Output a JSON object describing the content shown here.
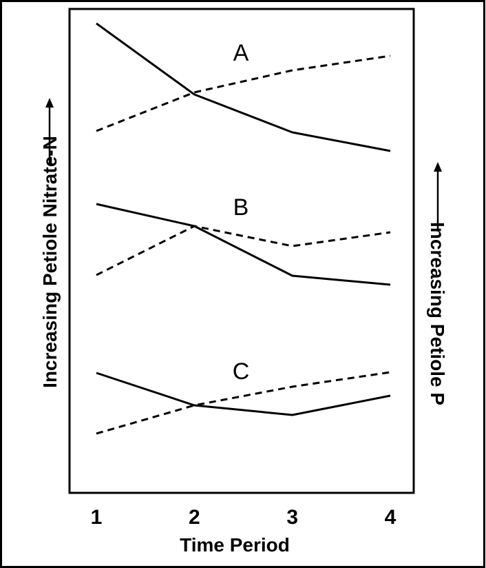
{
  "chart_data": {
    "type": "line",
    "x": [
      1,
      2,
      3,
      4
    ],
    "xlabel": "Time Period",
    "ylabel_left": "Increasing Petiole Nitrate-N",
    "ylabel_right": "Increasing Petiole P",
    "grid": false,
    "panels": [
      {
        "label": "A",
        "solid": [
          34,
          137,
          192,
          219
        ],
        "dashed": [
          190,
          134,
          102,
          81
        ]
      },
      {
        "label": "B",
        "solid": [
          296,
          328,
          400,
          413
        ],
        "dashed": [
          399,
          328,
          357,
          337
        ]
      },
      {
        "label": "C",
        "solid": [
          541,
          588,
          602,
          574
        ],
        "dashed": [
          629,
          588,
          561,
          540
        ]
      }
    ]
  }
}
